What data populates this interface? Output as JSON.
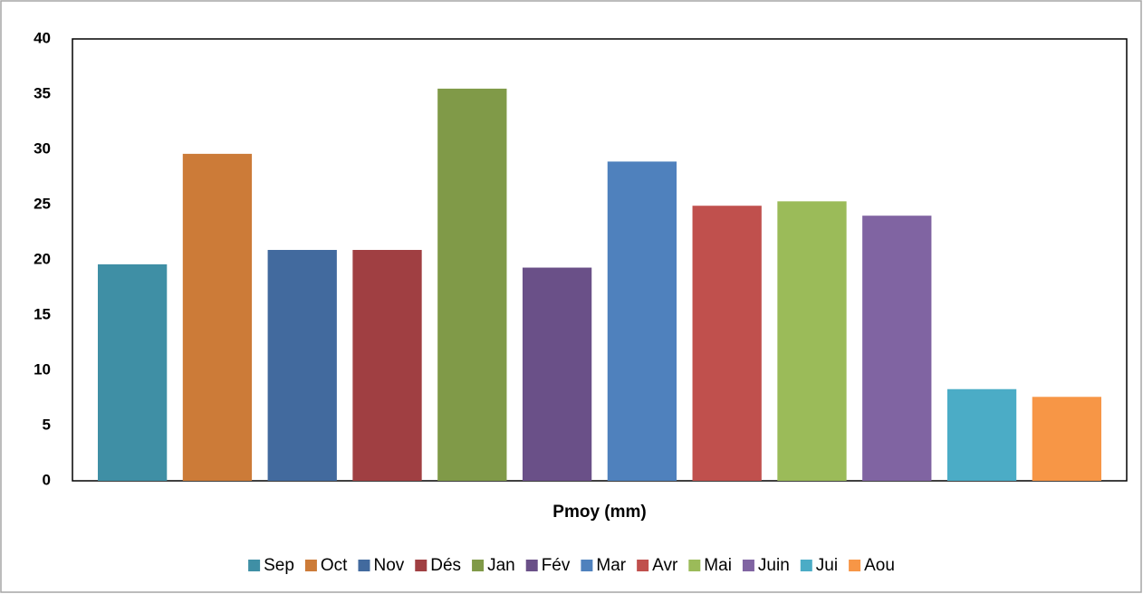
{
  "chart_data": {
    "type": "bar",
    "categories": [
      "Pmoy (mm)"
    ],
    "series": [
      {
        "name": "Sep",
        "color": "#3f8fa5",
        "values": [
          19.6
        ]
      },
      {
        "name": "Oct",
        "color": "#cc7b38",
        "values": [
          29.6
        ]
      },
      {
        "name": "Nov",
        "color": "#426a9e",
        "values": [
          20.9
        ]
      },
      {
        "name": "Dés",
        "color": "#a03f42",
        "values": [
          20.9
        ]
      },
      {
        "name": "Jan",
        "color": "#809a48",
        "values": [
          35.5
        ]
      },
      {
        "name": "Fév",
        "color": "#6a5088",
        "values": [
          19.3
        ]
      },
      {
        "name": "Mar",
        "color": "#4f81bd",
        "values": [
          28.9
        ]
      },
      {
        "name": "Avr",
        "color": "#c0504d",
        "values": [
          24.9
        ]
      },
      {
        "name": "Mai",
        "color": "#9bbb59",
        "values": [
          25.3
        ]
      },
      {
        "name": "Juin",
        "color": "#8064a2",
        "values": [
          24.0
        ]
      },
      {
        "name": "Jui",
        "color": "#4bacc6",
        "values": [
          8.3
        ]
      },
      {
        "name": "Aou",
        "color": "#f79646",
        "values": [
          7.6
        ]
      }
    ],
    "ylim": [
      0,
      40
    ],
    "yticks": [
      0,
      5,
      10,
      15,
      20,
      25,
      30,
      35,
      40
    ],
    "grid": false,
    "legend": "bottom"
  }
}
